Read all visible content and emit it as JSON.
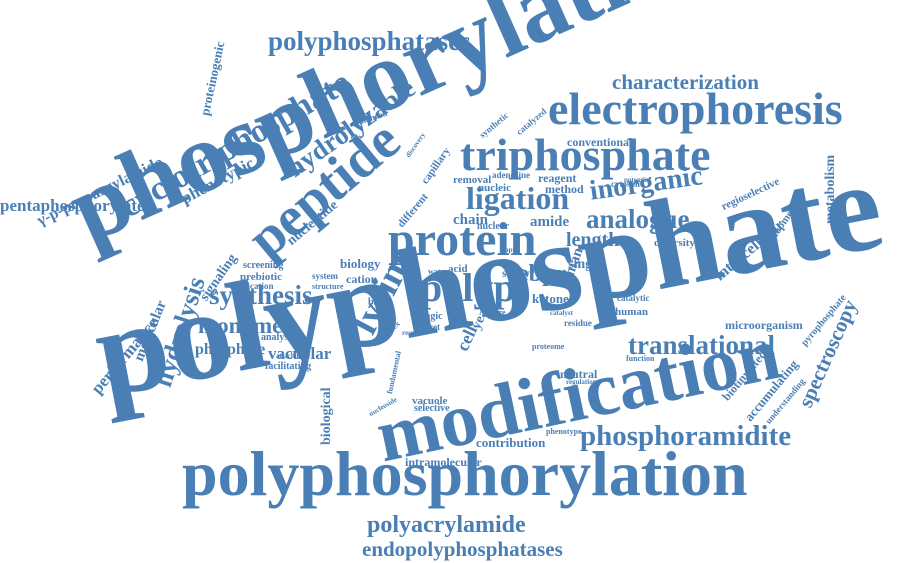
{
  "color": "#4a7fb5",
  "words": [
    {
      "id": "polyphosphate",
      "text": "polyphosphate"
    },
    {
      "id": "phosphorylation",
      "text": "phosphorylation"
    },
    {
      "id": "modification",
      "text": "modification"
    },
    {
      "id": "polyphosphorylation",
      "text": "polyphosphorylation"
    },
    {
      "id": "electrophoresis",
      "text": "electrophoresis"
    },
    {
      "id": "triphosphate",
      "text": "triphosphate"
    },
    {
      "id": "peptide",
      "text": "peptide"
    },
    {
      "id": "protein",
      "text": "protein"
    },
    {
      "id": "cyclotriphosphate",
      "text": "cyclotriphosphate"
    },
    {
      "id": "hydrolyzable",
      "text": "hydrolyzable"
    },
    {
      "id": "polyphosphatases",
      "text": "polyphosphatases"
    },
    {
      "id": "characterization",
      "text": "characterization"
    },
    {
      "id": "proteinogenic",
      "text": "proteinogenic"
    },
    {
      "id": "propargylamido",
      "text": "γ-p-propargylamido"
    },
    {
      "id": "pentaphosphorylated",
      "text": "pentaphosphorylated"
    },
    {
      "id": "phenotypic",
      "text": "phenotypic"
    },
    {
      "id": "ligation",
      "text": "ligation"
    },
    {
      "id": "inorganic",
      "text": "inorganic"
    },
    {
      "id": "analogue",
      "text": "analogue"
    },
    {
      "id": "polyp",
      "text": "polyp"
    },
    {
      "id": "lysine",
      "text": "lysine"
    },
    {
      "id": "synthesis",
      "text": "synthesis"
    },
    {
      "id": "monomer",
      "text": "monomer"
    },
    {
      "id": "phosphate",
      "text": "phosphate"
    },
    {
      "id": "vacuolar",
      "text": "vacuolar"
    },
    {
      "id": "hydrolysis",
      "text": "hydrolysis"
    },
    {
      "id": "molecular",
      "text": "molecular"
    },
    {
      "id": "performance",
      "text": "performance"
    },
    {
      "id": "signaling",
      "text": "signaling"
    },
    {
      "id": "translational",
      "text": "translational"
    },
    {
      "id": "spectroscopy",
      "text": "spectroscopy"
    },
    {
      "id": "phosphoramidite",
      "text": "phosphoramidite"
    },
    {
      "id": "polyacrylamide",
      "text": "polyacrylamide"
    },
    {
      "id": "endopolyphosphatases",
      "text": "endopolyphosphatases"
    },
    {
      "id": "intracellular",
      "text": "intracellular"
    },
    {
      "id": "metabolism",
      "text": "metabolism"
    },
    {
      "id": "length",
      "text": "length"
    },
    {
      "id": "ebpr",
      "text": "ebpr"
    },
    {
      "id": "raman",
      "text": "raman"
    },
    {
      "id": "cell",
      "text": "cell"
    },
    {
      "id": "yeast",
      "text": "yeast"
    },
    {
      "id": "nucleotide",
      "text": "nucleotide"
    },
    {
      "id": "chain",
      "text": "chain"
    },
    {
      "id": "amide",
      "text": "amide"
    },
    {
      "id": "biology",
      "text": "biology"
    },
    {
      "id": "cation",
      "text": "cation"
    },
    {
      "id": "prebiotic",
      "text": "prebiotic"
    },
    {
      "id": "screening",
      "text": "screening"
    },
    {
      "id": "implication",
      "text": "implication"
    },
    {
      "id": "analysis",
      "text": "analysis"
    },
    {
      "id": "facilitating",
      "text": "facilitating"
    },
    {
      "id": "biological",
      "text": "biological"
    },
    {
      "id": "contribution",
      "text": "contribution"
    },
    {
      "id": "intramolecular",
      "text": "intramolecular"
    },
    {
      "id": "vacuole",
      "text": "vacuole"
    },
    {
      "id": "neutral",
      "text": "neutral"
    },
    {
      "id": "microorganism",
      "text": "microorganism"
    },
    {
      "id": "accumulating",
      "text": "accumulating"
    },
    {
      "id": "biotinylated",
      "text": "biotinylated"
    },
    {
      "id": "pyrophosphate",
      "text": "pyrophosphate"
    },
    {
      "id": "development",
      "text": "development"
    },
    {
      "id": "regioselective",
      "text": "regioselective"
    },
    {
      "id": "diversity",
      "text": "diversity"
    },
    {
      "id": "catalytic",
      "text": "catalytic"
    },
    {
      "id": "human",
      "text": "human"
    },
    {
      "id": "single",
      "text": "single"
    },
    {
      "id": "ketone",
      "text": "ketone"
    },
    {
      "id": "study",
      "text": "study"
    },
    {
      "id": "post",
      "text": "post"
    },
    {
      "id": "acid",
      "text": "acid"
    },
    {
      "id": "water",
      "text": "water"
    },
    {
      "id": "basic",
      "text": "basic"
    },
    {
      "id": "magic",
      "text": "magic"
    },
    {
      "id": "target",
      "text": "target"
    },
    {
      "id": "system",
      "text": "system"
    },
    {
      "id": "removal",
      "text": "removal"
    },
    {
      "id": "adenosine",
      "text": "adenosine"
    },
    {
      "id": "nucleic",
      "text": "nucleic"
    },
    {
      "id": "reagent",
      "text": "reagent"
    },
    {
      "id": "method",
      "text": "method"
    },
    {
      "id": "cytosolic",
      "text": "cytosolic"
    },
    {
      "id": "conventional",
      "text": "conventional"
    },
    {
      "id": "nuclear",
      "text": "nuclear"
    },
    {
      "id": "different",
      "text": "different"
    },
    {
      "id": "capillary",
      "text": "capillary"
    },
    {
      "id": "synthetic",
      "text": "synthetic"
    },
    {
      "id": "catalyzed",
      "text": "catalyzed"
    },
    {
      "id": "enhanced",
      "text": "enhanced"
    },
    {
      "id": "structure",
      "text": "structure"
    },
    {
      "id": "attachment",
      "text": "attachment"
    },
    {
      "id": "fundamental",
      "text": "fundamental"
    },
    {
      "id": "nucleoside",
      "text": "nucleoside"
    },
    {
      "id": "selective",
      "text": "selective"
    },
    {
      "id": "residue",
      "text": "residue"
    },
    {
      "id": "function",
      "text": "function"
    },
    {
      "id": "phenotype",
      "text": "phenotype"
    },
    {
      "id": "regulation",
      "text": "regulation"
    },
    {
      "id": "proteome",
      "text": "proteome"
    },
    {
      "id": "understanding",
      "text": "understanding"
    },
    {
      "id": "catalyst",
      "text": "catalyst"
    },
    {
      "id": "rapid",
      "text": "rapid"
    },
    {
      "id": "nature",
      "text": "nature"
    },
    {
      "id": "potential",
      "text": "potential"
    },
    {
      "id": "discovery",
      "text": "discovery"
    },
    {
      "id": "result",
      "text": "result"
    },
    {
      "id": "complex",
      "text": "complex"
    }
  ]
}
